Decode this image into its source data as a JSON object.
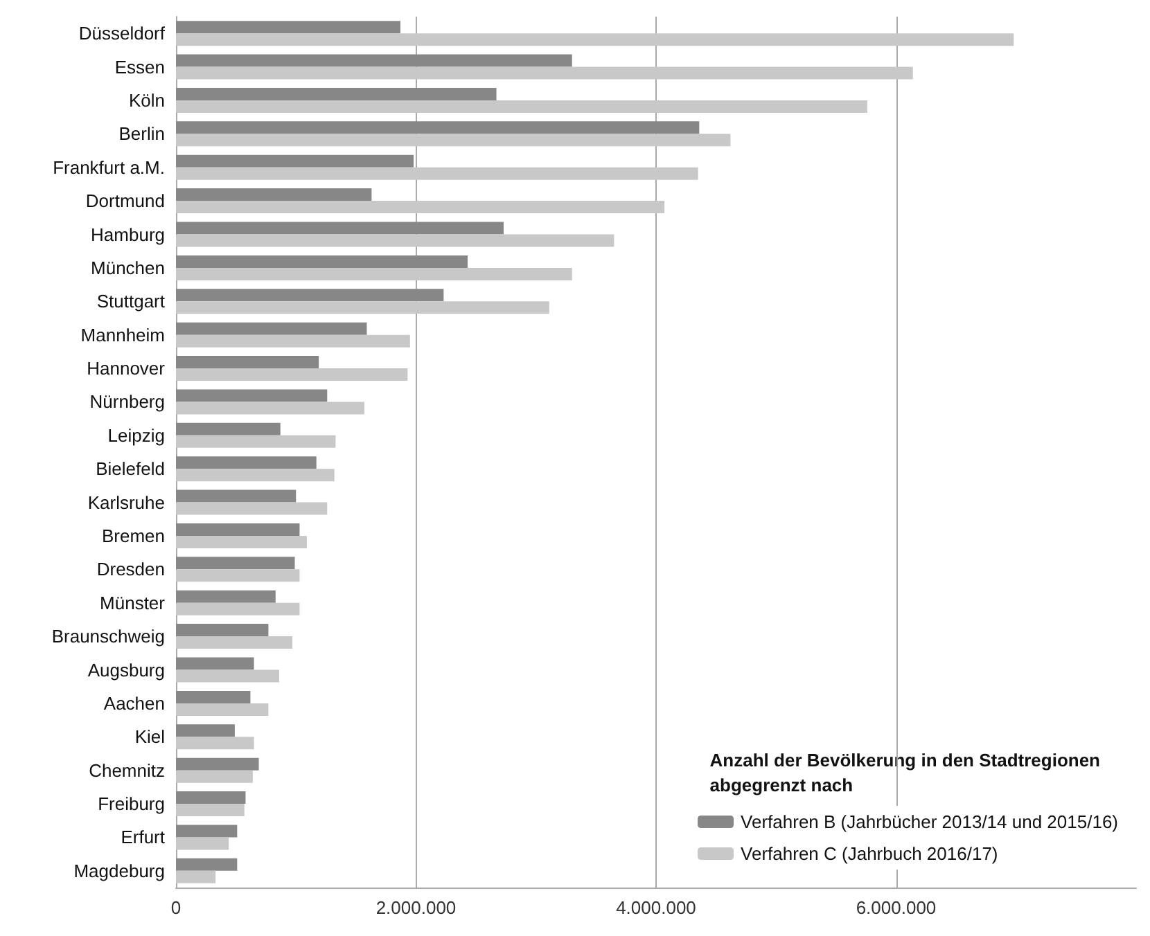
{
  "chart_data": {
    "type": "bar",
    "orientation": "horizontal",
    "categories": [
      "Düsseldorf",
      "Essen",
      "Köln",
      "Berlin",
      "Frankfurt a.M.",
      "Dortmund",
      "Hamburg",
      "München",
      "Stuttgart",
      "Mannheim",
      "Hannover",
      "Nürnberg",
      "Leipzig",
      "Bielefeld",
      "Karlsruhe",
      "Bremen",
      "Dresden",
      "Münster",
      "Braunschweig",
      "Augsburg",
      "Aachen",
      "Kiel",
      "Chemnitz",
      "Freiburg",
      "Erfurt",
      "Magdeburg"
    ],
    "series": [
      {
        "name": "Verfahren B (Jahrbücher 2013/14 und 2015/16)",
        "color": "#878787",
        "values": [
          1870000,
          3300000,
          2670000,
          4360000,
          1980000,
          1630000,
          2730000,
          2430000,
          2230000,
          1590000,
          1190000,
          1260000,
          870000,
          1170000,
          1000000,
          1030000,
          990000,
          830000,
          770000,
          650000,
          620000,
          490000,
          690000,
          580000,
          510000,
          510000
        ]
      },
      {
        "name": "Verfahren C (Jahrbuch 2016/17)",
        "color": "#c8c8c8",
        "values": [
          6980000,
          6140000,
          5760000,
          4620000,
          4350000,
          4070000,
          3650000,
          3300000,
          3110000,
          1950000,
          1930000,
          1570000,
          1330000,
          1320000,
          1260000,
          1090000,
          1030000,
          1030000,
          970000,
          860000,
          770000,
          650000,
          640000,
          570000,
          440000,
          330000
        ]
      }
    ],
    "legend_title": "Anzahl der Bevölkerung in den Stadtregionen\nabgegrenzt nach",
    "legend": "bottom right",
    "xlim": [
      0,
      8000000
    ],
    "xticks": [
      {
        "value": 0,
        "label": "0"
      },
      {
        "value": 2000000,
        "label": "2.000.000"
      },
      {
        "value": 4000000,
        "label": "4.000.000"
      },
      {
        "value": 6000000,
        "label": "6.000.000"
      }
    ],
    "grid": "x"
  }
}
